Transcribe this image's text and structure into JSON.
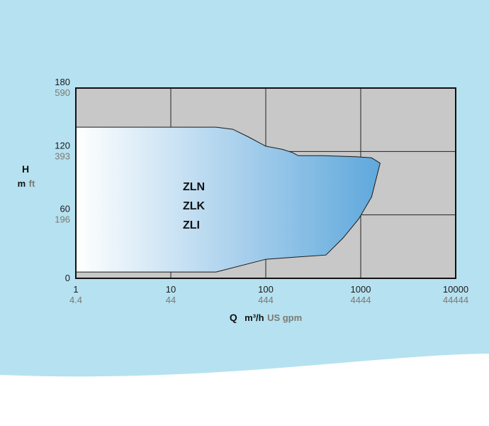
{
  "colors": {
    "background": "#b6e1f1",
    "plot_background": "#c8c8c8",
    "grid": "#222222",
    "area_start": "#ffffff",
    "area_end": "#5fa8dc",
    "tick_primary": "#1a1a1a",
    "tick_secondary": "#7a7a72"
  },
  "chart_data": {
    "type": "area",
    "x_scale": "log",
    "y_scale": "linear",
    "xlim": [
      1,
      10000
    ],
    "ylim": [
      0,
      180
    ],
    "grid": true,
    "x_axis": {
      "label": "Q",
      "unit_primary": "m³/h",
      "unit_secondary": "US gpm",
      "ticks": [
        {
          "value": 1,
          "label": "1",
          "alt": "4.4"
        },
        {
          "value": 10,
          "label": "10",
          "alt": "44"
        },
        {
          "value": 100,
          "label": "100",
          "alt": "444"
        },
        {
          "value": 1000,
          "label": "1000",
          "alt": "4444"
        },
        {
          "value": 10000,
          "label": "10000",
          "alt": "44444"
        }
      ]
    },
    "y_axis": {
      "label": "H",
      "unit_primary": "m",
      "unit_secondary": "ft",
      "ticks": [
        {
          "value": 0,
          "label": "0",
          "alt": ""
        },
        {
          "value": 60,
          "label": "60",
          "alt": "196"
        },
        {
          "value": 120,
          "label": "120",
          "alt": "393"
        },
        {
          "value": 180,
          "label": "180",
          "alt": "590"
        }
      ]
    },
    "series_labels": [
      "ZLN",
      "ZLK",
      "ZLI"
    ],
    "envelope": [
      {
        "x": 1,
        "y": 143
      },
      {
        "x": 30,
        "y": 143
      },
      {
        "x": 45,
        "y": 141
      },
      {
        "x": 65,
        "y": 134
      },
      {
        "x": 100,
        "y": 125
      },
      {
        "x": 150,
        "y": 122
      },
      {
        "x": 190,
        "y": 119
      },
      {
        "x": 220,
        "y": 116
      },
      {
        "x": 400,
        "y": 116
      },
      {
        "x": 900,
        "y": 115
      },
      {
        "x": 1300,
        "y": 114
      },
      {
        "x": 1600,
        "y": 109
      },
      {
        "x": 1300,
        "y": 77
      },
      {
        "x": 950,
        "y": 56
      },
      {
        "x": 650,
        "y": 38
      },
      {
        "x": 430,
        "y": 22
      },
      {
        "x": 200,
        "y": 20
      },
      {
        "x": 100,
        "y": 18
      },
      {
        "x": 30,
        "y": 6
      },
      {
        "x": 1,
        "y": 6
      }
    ]
  }
}
